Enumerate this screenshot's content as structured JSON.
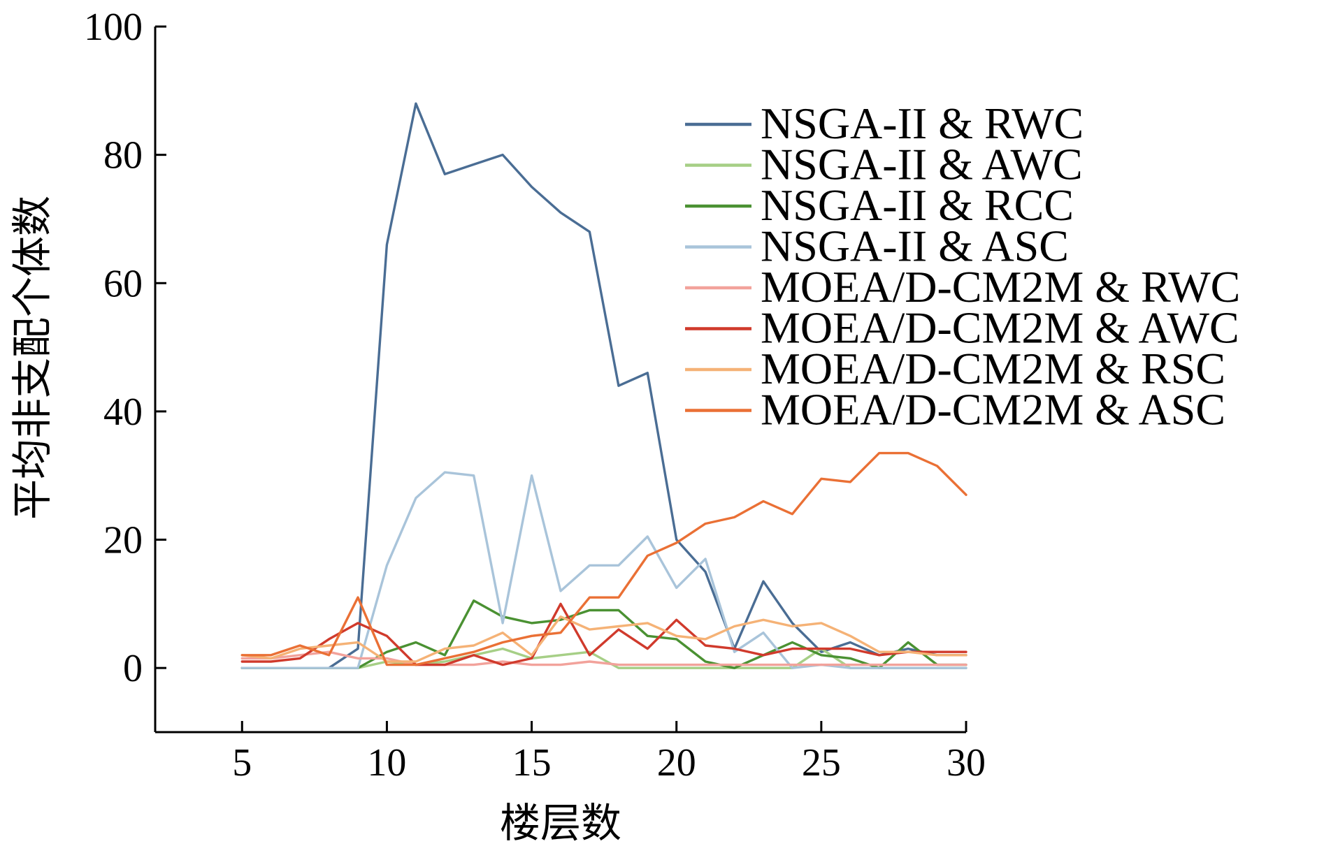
{
  "chart_data": {
    "type": "line",
    "title": "",
    "xlabel": "楼层数",
    "ylabel": "平均非支配个体数",
    "xlim": [
      2,
      30
    ],
    "ylim": [
      -10,
      100
    ],
    "xticks": [
      5,
      10,
      15,
      20,
      25,
      30
    ],
    "yticks": [
      0,
      20,
      40,
      60,
      80,
      100
    ],
    "grid": false,
    "legend_position": "top-right",
    "x": [
      5,
      6,
      7,
      8,
      9,
      10,
      11,
      12,
      13,
      14,
      15,
      16,
      17,
      18,
      19,
      20,
      21,
      22,
      23,
      24,
      25,
      26,
      27,
      28,
      29,
      30
    ],
    "series": [
      {
        "name": "NSGA-II & RWC",
        "color": "#4a6d94",
        "values": [
          0,
          0,
          0,
          0,
          3,
          66,
          88,
          77,
          78.5,
          80,
          75,
          71,
          68,
          44,
          46,
          20,
          15,
          3,
          13.5,
          7,
          2.5,
          4,
          2,
          3,
          2,
          2
        ]
      },
      {
        "name": "NSGA-II & AWC",
        "color": "#a6cf86",
        "values": [
          0,
          0,
          0,
          0,
          0,
          1,
          0.5,
          1,
          2,
          3,
          1.5,
          2,
          2.5,
          0,
          0,
          0,
          0,
          0,
          0,
          0,
          3,
          0,
          0,
          0,
          0,
          0
        ]
      },
      {
        "name": "NSGA-II & RCC",
        "color": "#4a9132",
        "values": [
          0,
          0,
          0,
          0,
          0,
          2.5,
          4,
          2,
          10.5,
          8,
          7,
          7.5,
          9,
          9,
          5,
          4.5,
          1,
          0,
          2,
          4,
          2,
          1.5,
          0,
          4,
          0.5,
          0.5
        ]
      },
      {
        "name": "NSGA-II & ASC",
        "color": "#a9c4da",
        "values": [
          0,
          0,
          0,
          0,
          0,
          16,
          26.5,
          30.5,
          30,
          7,
          30,
          12,
          16,
          16,
          20.5,
          12.5,
          17,
          2.5,
          5.5,
          0,
          0.5,
          0,
          0,
          0,
          0,
          0
        ]
      },
      {
        "name": "MOEA/D-CM2M & RWC",
        "color": "#f2a29b",
        "values": [
          1.5,
          1.5,
          2,
          2.5,
          1.5,
          1.5,
          0.5,
          0.5,
          0.5,
          1,
          0.5,
          0.5,
          1,
          0.5,
          0.5,
          0.5,
          0.5,
          0.5,
          0.5,
          0.5,
          0.5,
          0.5,
          0.5,
          0.5,
          0.5,
          0.5
        ]
      },
      {
        "name": "MOEA/D-CM2M & AWC",
        "color": "#d03a2c",
        "values": [
          1,
          1,
          1.5,
          4.5,
          7,
          5,
          0.5,
          0.5,
          2,
          0.5,
          1.5,
          10,
          2,
          6,
          3,
          7.5,
          3.5,
          3,
          2,
          3,
          3,
          3,
          2,
          2.5,
          2.5,
          2.5
        ]
      },
      {
        "name": "MOEA/D-CM2M & RSC",
        "color": "#f5b276",
        "values": [
          2,
          1.5,
          3,
          3.5,
          4,
          1,
          1,
          3,
          3.5,
          5.5,
          2,
          8,
          6,
          6.5,
          7,
          5,
          4.5,
          6.5,
          7.5,
          6.5,
          7,
          5,
          2.5,
          2.5,
          2,
          2
        ]
      },
      {
        "name": "MOEA/D-CM2M & ASC",
        "color": "#ea7035",
        "values": [
          2,
          2,
          3.5,
          2,
          11,
          0.5,
          0.5,
          1.5,
          2.5,
          4,
          5,
          5.5,
          11,
          11,
          17.5,
          19.5,
          22.5,
          23.5,
          26,
          24,
          29.5,
          29,
          33.5,
          33.5,
          31.5,
          27
        ]
      }
    ]
  }
}
